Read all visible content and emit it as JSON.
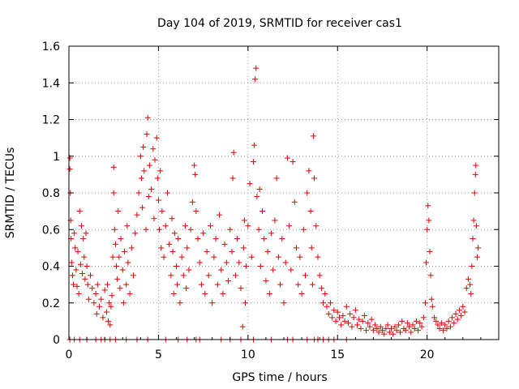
{
  "chart_data": {
    "type": "scatter",
    "title": "Day 104 of 2019, SRMTID for receiver cas1",
    "xlabel": "GPS time / hours",
    "ylabel": "SRMTID / TECUs",
    "xlim": [
      0,
      24
    ],
    "ylim": [
      0,
      1.6
    ],
    "xticks": [
      0,
      5,
      10,
      15,
      20
    ],
    "yticks": [
      0,
      0.2,
      0.4,
      0.6,
      0.8,
      1,
      1.2,
      1.4,
      1.6
    ],
    "xtick_labels": [
      "0",
      "5",
      "10",
      "15",
      "20"
    ],
    "ytick_labels": [
      "0",
      "0.2",
      "0.4",
      "0.6",
      "0.8",
      "1",
      "1.2",
      "1.4",
      "1.6"
    ],
    "grid": true,
    "marker": "+",
    "color": "#e00000",
    "series": [
      {
        "name": "cas1",
        "points": [
          [
            0.05,
            0.93
          ],
          [
            0.05,
            0.99
          ],
          [
            0.08,
            0.8
          ],
          [
            0.1,
            0.65
          ],
          [
            0.12,
            0.55
          ],
          [
            0.15,
            0.42
          ],
          [
            0.2,
            0.35
          ],
          [
            0.25,
            0.3
          ],
          [
            0.3,
            0.58
          ],
          [
            0.35,
            0.5
          ],
          [
            0.4,
            0.38
          ],
          [
            0.45,
            0.29
          ],
          [
            0.5,
            0.48
          ],
          [
            0.55,
            0.25
          ],
          [
            0.6,
            0.7
          ],
          [
            0.65,
            0.41
          ],
          [
            0.7,
            0.62
          ],
          [
            0.75,
            0.36
          ],
          [
            0.8,
            0.55
          ],
          [
            0.85,
            0.45
          ],
          [
            0.9,
            0.33
          ],
          [
            0.95,
            0.58
          ],
          [
            1.0,
            0.4
          ],
          [
            1.05,
            0.3
          ],
          [
            1.1,
            0.22
          ],
          [
            1.2,
            0.35
          ],
          [
            1.3,
            0.28
          ],
          [
            1.4,
            0.2
          ],
          [
            1.5,
            0.25
          ],
          [
            1.55,
            0.14
          ],
          [
            1.6,
            0.3
          ],
          [
            1.7,
            0.18
          ],
          [
            1.8,
            0.22
          ],
          [
            1.9,
            0.12
          ],
          [
            2.0,
            0.27
          ],
          [
            2.1,
            0.15
          ],
          [
            2.15,
            0.3
          ],
          [
            2.2,
            0.1
          ],
          [
            2.25,
            0.2
          ],
          [
            2.3,
            0.08
          ],
          [
            2.35,
            0.18
          ],
          [
            2.4,
            0.24
          ],
          [
            2.45,
            0.45
          ],
          [
            2.5,
            0.94
          ],
          [
            2.5,
            0.8
          ],
          [
            2.55,
            0.6
          ],
          [
            2.6,
            0.52
          ],
          [
            2.65,
            0.4
          ],
          [
            2.7,
            0.33
          ],
          [
            2.75,
            0.7
          ],
          [
            2.8,
            0.45
          ],
          [
            2.85,
            0.28
          ],
          [
            2.9,
            0.55
          ],
          [
            3.0,
            0.38
          ],
          [
            3.05,
            0.2
          ],
          [
            3.1,
            0.48
          ],
          [
            3.2,
            0.3
          ],
          [
            3.25,
            0.62
          ],
          [
            3.3,
            0.42
          ],
          [
            3.4,
            0.25
          ],
          [
            3.5,
            0.5
          ],
          [
            3.6,
            0.35
          ],
          [
            3.7,
            0.58
          ],
          [
            3.8,
            0.68
          ],
          [
            3.9,
            0.8
          ],
          [
            4.0,
            1.0
          ],
          [
            4.05,
            0.88
          ],
          [
            4.1,
            0.72
          ],
          [
            4.15,
            1.05
          ],
          [
            4.2,
            0.92
          ],
          [
            4.3,
            0.6
          ],
          [
            4.35,
            1.12
          ],
          [
            4.4,
            1.21
          ],
          [
            4.45,
            0.78
          ],
          [
            4.5,
            0.95
          ],
          [
            4.6,
            0.82
          ],
          [
            4.7,
            1.04
          ],
          [
            4.75,
            0.66
          ],
          [
            4.8,
            0.98
          ],
          [
            4.9,
            1.1
          ],
          [
            4.95,
            0.88
          ],
          [
            5.0,
            0.76
          ],
          [
            5.05,
            0.6
          ],
          [
            5.1,
            0.92
          ],
          [
            5.15,
            0.5
          ],
          [
            5.2,
            0.7
          ],
          [
            5.3,
            0.45
          ],
          [
            5.4,
            0.62
          ],
          [
            5.5,
            0.8
          ],
          [
            5.6,
            0.52
          ],
          [
            5.7,
            0.35
          ],
          [
            5.75,
            0.66
          ],
          [
            5.8,
            0.48
          ],
          [
            5.85,
            0.25
          ],
          [
            5.9,
            0.58
          ],
          [
            6.0,
            0.4
          ],
          [
            6.05,
            0.3
          ],
          [
            6.1,
            0.55
          ],
          [
            6.2,
            0.2
          ],
          [
            6.3,
            0.45
          ],
          [
            6.4,
            0.35
          ],
          [
            6.5,
            0.62
          ],
          [
            6.55,
            0.28
          ],
          [
            6.6,
            0.5
          ],
          [
            6.7,
            0.38
          ],
          [
            6.8,
            0.6
          ],
          [
            6.9,
            0.75
          ],
          [
            7.0,
            0.95
          ],
          [
            7.05,
            0.9
          ],
          [
            7.1,
            0.7
          ],
          [
            7.2,
            0.55
          ],
          [
            7.3,
            0.42
          ],
          [
            7.4,
            0.3
          ],
          [
            7.5,
            0.58
          ],
          [
            7.6,
            0.25
          ],
          [
            7.7,
            0.48
          ],
          [
            7.8,
            0.35
          ],
          [
            7.9,
            0.62
          ],
          [
            8.0,
            0.2
          ],
          [
            8.1,
            0.45
          ],
          [
            8.2,
            0.55
          ],
          [
            8.3,
            0.3
          ],
          [
            8.4,
            0.68
          ],
          [
            8.5,
            0.38
          ],
          [
            8.6,
            0.25
          ],
          [
            8.7,
            0.52
          ],
          [
            8.8,
            0.42
          ],
          [
            8.9,
            0.32
          ],
          [
            9.0,
            0.6
          ],
          [
            9.1,
            0.48
          ],
          [
            9.15,
            0.88
          ],
          [
            9.2,
            1.02
          ],
          [
            9.3,
            0.35
          ],
          [
            9.4,
            0.55
          ],
          [
            9.5,
            0.42
          ],
          [
            9.6,
            0.28
          ],
          [
            9.7,
            0.07
          ],
          [
            9.75,
            0.5
          ],
          [
            9.8,
            0.65
          ],
          [
            9.85,
            0.2
          ],
          [
            9.9,
            0.4
          ],
          [
            10.0,
            0.62
          ],
          [
            10.1,
            0.85
          ],
          [
            10.2,
            0.45
          ],
          [
            10.3,
            0.97
          ],
          [
            10.35,
            1.06
          ],
          [
            10.4,
            1.42
          ],
          [
            10.45,
            1.48
          ],
          [
            10.5,
            0.78
          ],
          [
            10.6,
            0.6
          ],
          [
            10.65,
            0.82
          ],
          [
            10.7,
            0.4
          ],
          [
            10.8,
            0.7
          ],
          [
            10.9,
            0.55
          ],
          [
            11.0,
            0.32
          ],
          [
            11.1,
            0.48
          ],
          [
            11.2,
            0.25
          ],
          [
            11.3,
            0.58
          ],
          [
            11.4,
            0.38
          ],
          [
            11.5,
            0.65
          ],
          [
            11.6,
            0.88
          ],
          [
            11.7,
            0.45
          ],
          [
            11.8,
            0.3
          ],
          [
            11.9,
            0.55
          ],
          [
            12.0,
            0.2
          ],
          [
            12.1,
            0.42
          ],
          [
            12.2,
            0.99
          ],
          [
            12.3,
            0.62
          ],
          [
            12.4,
            0.38
          ],
          [
            12.5,
            0.97
          ],
          [
            12.6,
            0.75
          ],
          [
            12.7,
            0.5
          ],
          [
            12.8,
            0.3
          ],
          [
            12.9,
            0.45
          ],
          [
            13.0,
            0.25
          ],
          [
            13.1,
            0.6
          ],
          [
            13.2,
            0.35
          ],
          [
            13.3,
            0.8
          ],
          [
            13.4,
            0.92
          ],
          [
            13.5,
            0.7
          ],
          [
            13.55,
            0.5
          ],
          [
            13.6,
            0.3
          ],
          [
            13.65,
            1.11
          ],
          [
            13.7,
            0.88
          ],
          [
            13.8,
            0.62
          ],
          [
            13.9,
            0.45
          ],
          [
            14.0,
            0.35
          ],
          [
            14.1,
            0.28
          ],
          [
            14.2,
            0.2
          ],
          [
            14.3,
            0.25
          ],
          [
            14.4,
            0.18
          ],
          [
            14.5,
            0.14
          ],
          [
            14.6,
            0.2
          ],
          [
            14.7,
            0.12
          ],
          [
            14.8,
            0.16
          ],
          [
            14.9,
            0.1
          ],
          [
            15.0,
            0.15
          ],
          [
            15.1,
            0.12
          ],
          [
            15.2,
            0.08
          ],
          [
            15.3,
            0.13
          ],
          [
            15.4,
            0.1
          ],
          [
            15.5,
            0.18
          ],
          [
            15.6,
            0.09
          ],
          [
            15.7,
            0.14
          ],
          [
            15.8,
            0.07
          ],
          [
            15.9,
            0.12
          ],
          [
            16.0,
            0.16
          ],
          [
            16.1,
            0.08
          ],
          [
            16.2,
            0.11
          ],
          [
            16.3,
            0.06
          ],
          [
            16.4,
            0.1
          ],
          [
            16.5,
            0.13
          ],
          [
            16.6,
            0.05
          ],
          [
            16.7,
            0.09
          ],
          [
            16.8,
            0.07
          ],
          [
            16.9,
            0.11
          ],
          [
            17.0,
            0.05
          ],
          [
            17.1,
            0.08
          ],
          [
            17.2,
            0.06
          ],
          [
            17.3,
            0.04
          ],
          [
            17.4,
            0.07
          ],
          [
            17.5,
            0.05
          ],
          [
            17.6,
            0.03
          ],
          [
            17.7,
            0.06
          ],
          [
            17.8,
            0.08
          ],
          [
            17.9,
            0.04
          ],
          [
            18.0,
            0.06
          ],
          [
            18.1,
            0.03
          ],
          [
            18.2,
            0.07
          ],
          [
            18.3,
            0.05
          ],
          [
            18.4,
            0.08
          ],
          [
            18.5,
            0.04
          ],
          [
            18.6,
            0.1
          ],
          [
            18.7,
            0.06
          ],
          [
            18.8,
            0.05
          ],
          [
            18.9,
            0.09
          ],
          [
            19.0,
            0.07
          ],
          [
            19.1,
            0.04
          ],
          [
            19.2,
            0.08
          ],
          [
            19.3,
            0.06
          ],
          [
            19.4,
            0.1
          ],
          [
            19.5,
            0.05
          ],
          [
            19.6,
            0.09
          ],
          [
            19.7,
            0.07
          ],
          [
            19.8,
            0.12
          ],
          [
            19.9,
            0.2
          ],
          [
            19.95,
            0.42
          ],
          [
            20.0,
            0.6
          ],
          [
            20.05,
            0.73
          ],
          [
            20.1,
            0.65
          ],
          [
            20.15,
            0.48
          ],
          [
            20.2,
            0.35
          ],
          [
            20.25,
            0.22
          ],
          [
            20.3,
            0.18
          ],
          [
            20.4,
            0.12
          ],
          [
            20.5,
            0.1
          ],
          [
            20.6,
            0.08
          ],
          [
            20.7,
            0.06
          ],
          [
            20.8,
            0.09
          ],
          [
            20.9,
            0.05
          ],
          [
            21.0,
            0.08
          ],
          [
            21.1,
            0.06
          ],
          [
            21.2,
            0.1
          ],
          [
            21.3,
            0.07
          ],
          [
            21.4,
            0.12
          ],
          [
            21.5,
            0.09
          ],
          [
            21.6,
            0.14
          ],
          [
            21.7,
            0.11
          ],
          [
            21.8,
            0.16
          ],
          [
            21.9,
            0.13
          ],
          [
            22.0,
            0.18
          ],
          [
            22.1,
            0.15
          ],
          [
            22.2,
            0.28
          ],
          [
            22.3,
            0.33
          ],
          [
            22.4,
            0.3
          ],
          [
            22.45,
            0.25
          ],
          [
            22.5,
            0.4
          ],
          [
            22.55,
            0.55
          ],
          [
            22.6,
            0.65
          ],
          [
            22.65,
            0.8
          ],
          [
            22.7,
            0.9
          ],
          [
            22.72,
            0.95
          ],
          [
            22.75,
            0.62
          ],
          [
            22.8,
            0.45
          ],
          [
            22.85,
            0.5
          ]
        ],
        "zero_points_x": [
          0.05,
          0.3,
          0.6,
          1.0,
          1.5,
          1.8,
          2.0,
          2.3,
          2.6,
          3.2,
          3.8,
          4.4,
          5.4,
          6.1,
          6.6,
          7.1,
          7.3,
          8.5,
          9.0,
          9.6,
          10.3,
          11.3,
          12.2,
          12.5,
          13.3,
          13.7,
          13.9,
          14.2,
          14.5,
          14.8,
          15.5
        ]
      }
    ]
  }
}
